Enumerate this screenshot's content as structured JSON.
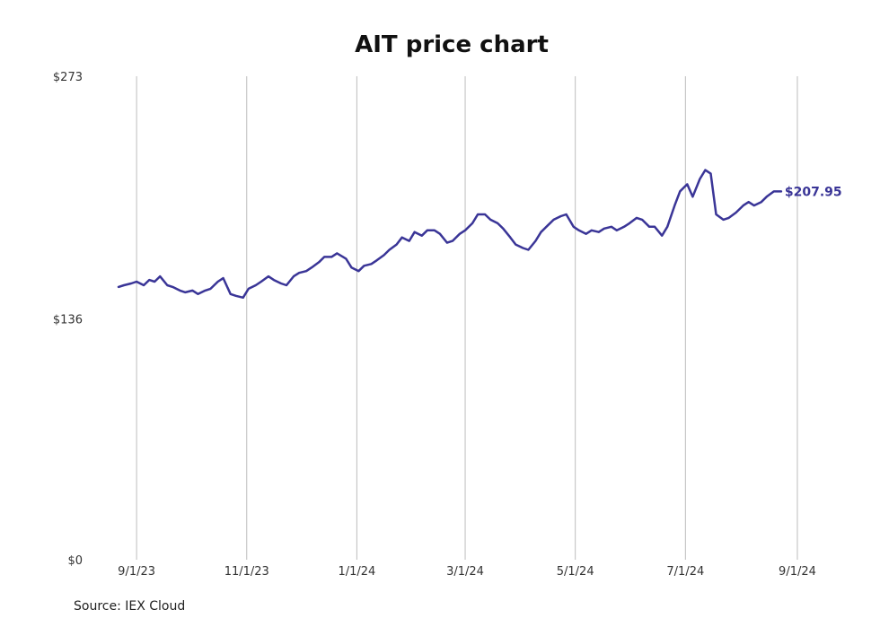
{
  "source": "Source: IEX Cloud",
  "chart_data": {
    "type": "line",
    "title": "AIT price chart",
    "line_color": "#3a3597",
    "y_ticks": [
      {
        "value": 0,
        "label": "$0"
      },
      {
        "value": 136,
        "label": "$136"
      },
      {
        "value": 273,
        "label": "$273"
      }
    ],
    "ylim": [
      0,
      273
    ],
    "xlim": [
      "2023-08-22",
      "2024-09-03"
    ],
    "x_ticks": [
      {
        "date": "2023-09-01",
        "label": "9/1/23"
      },
      {
        "date": "2023-11-01",
        "label": "11/1/23"
      },
      {
        "date": "2024-01-01",
        "label": "1/1/24"
      },
      {
        "date": "2024-03-01",
        "label": "3/1/24"
      },
      {
        "date": "2024-05-01",
        "label": "5/1/24"
      },
      {
        "date": "2024-07-01",
        "label": "7/1/24"
      },
      {
        "date": "2024-09-01",
        "label": "9/1/24"
      }
    ],
    "last_label": "$207.95",
    "series": [
      {
        "x": [
          "2023-08-22",
          "2023-08-25",
          "2023-08-29",
          "2023-09-01",
          "2023-09-05",
          "2023-09-08",
          "2023-09-11",
          "2023-09-14",
          "2023-09-18",
          "2023-09-21",
          "2023-09-25",
          "2023-09-28",
          "2023-10-02",
          "2023-10-05",
          "2023-10-09",
          "2023-10-12",
          "2023-10-16",
          "2023-10-19",
          "2023-10-23",
          "2023-10-26",
          "2023-10-30",
          "2023-11-02",
          "2023-11-06",
          "2023-11-09",
          "2023-11-13",
          "2023-11-16",
          "2023-11-20",
          "2023-11-23",
          "2023-11-27",
          "2023-11-30",
          "2023-12-04",
          "2023-12-07",
          "2023-12-11",
          "2023-12-14",
          "2023-12-18",
          "2023-12-21",
          "2023-12-26",
          "2023-12-29",
          "2024-01-02",
          "2024-01-05",
          "2024-01-09",
          "2024-01-12",
          "2024-01-16",
          "2024-01-19",
          "2024-01-23",
          "2024-01-26",
          "2024-01-30",
          "2024-02-02",
          "2024-02-06",
          "2024-02-09",
          "2024-02-13",
          "2024-02-16",
          "2024-02-20",
          "2024-02-23",
          "2024-02-27",
          "2024-03-01",
          "2024-03-05",
          "2024-03-08",
          "2024-03-12",
          "2024-03-15",
          "2024-03-19",
          "2024-03-22",
          "2024-03-26",
          "2024-03-29",
          "2024-04-02",
          "2024-04-05",
          "2024-04-09",
          "2024-04-12",
          "2024-04-16",
          "2024-04-19",
          "2024-04-23",
          "2024-04-26",
          "2024-04-30",
          "2024-05-03",
          "2024-05-07",
          "2024-05-10",
          "2024-05-14",
          "2024-05-17",
          "2024-05-21",
          "2024-05-24",
          "2024-05-28",
          "2024-05-31",
          "2024-06-04",
          "2024-06-07",
          "2024-06-11",
          "2024-06-14",
          "2024-06-18",
          "2024-06-21",
          "2024-06-25",
          "2024-06-28",
          "2024-07-02",
          "2024-07-05",
          "2024-07-09",
          "2024-07-12",
          "2024-07-15",
          "2024-07-18",
          "2024-07-22",
          "2024-07-25",
          "2024-07-29",
          "2024-07-31",
          "2024-08-02",
          "2024-08-05",
          "2024-08-08",
          "2024-08-12",
          "2024-08-15",
          "2024-08-19",
          "2024-08-22",
          "2024-08-23"
        ],
        "y": [
          154,
          155,
          156,
          157,
          155,
          158,
          157,
          160,
          155,
          154,
          152,
          151,
          152,
          150,
          152,
          153,
          157,
          159,
          150,
          149,
          148,
          153,
          155,
          157,
          160,
          158,
          156,
          155,
          160,
          162,
          163,
          165,
          168,
          171,
          171,
          173,
          170,
          165,
          163,
          166,
          167,
          169,
          172,
          175,
          178,
          182,
          180,
          185,
          183,
          186,
          186,
          184,
          179,
          180,
          184,
          186,
          190,
          195,
          195,
          192,
          190,
          187,
          182,
          178,
          176,
          175,
          180,
          185,
          189,
          192,
          194,
          195,
          188,
          186,
          184,
          186,
          185,
          187,
          188,
          186,
          188,
          190,
          193,
          192,
          188,
          188,
          183,
          188,
          200,
          208,
          212,
          205,
          215,
          220,
          218,
          195,
          192,
          193,
          196,
          198,
          200,
          202,
          200,
          202,
          205,
          207.95,
          207.95,
          207.95
        ]
      }
    ]
  }
}
